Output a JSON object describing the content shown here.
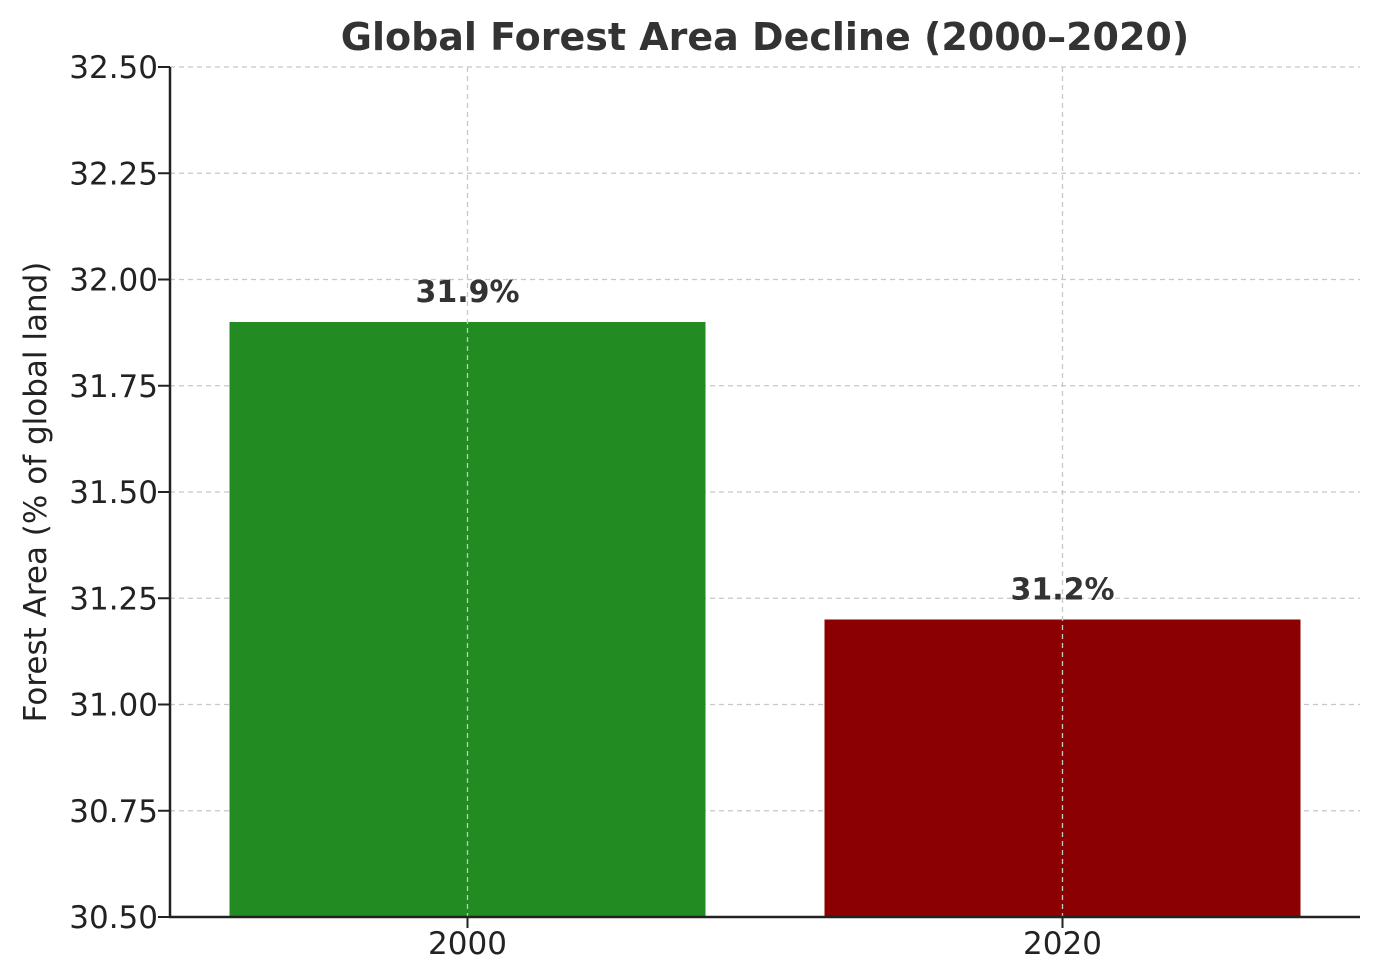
{
  "chart_data": {
    "type": "bar",
    "title": "Global Forest Area Decline (2000–2020)",
    "xlabel": "",
    "ylabel": "Forest Area (% of global land)",
    "categories": [
      "2000",
      "2020"
    ],
    "values": [
      31.9,
      31.2
    ],
    "data_labels": [
      "31.9%",
      "31.2%"
    ],
    "bar_colors": [
      "#228b22",
      "#8b0000"
    ],
    "ylim": [
      30.5,
      32.5
    ],
    "yticks": [
      30.5,
      30.75,
      31.0,
      31.25,
      31.5,
      31.75,
      32.0,
      32.25,
      32.5
    ],
    "ytick_labels": [
      "30.50",
      "30.75",
      "31.00",
      "31.25",
      "31.50",
      "31.75",
      "32.00",
      "32.25",
      "32.50"
    ],
    "grid": true,
    "legend": "none"
  }
}
